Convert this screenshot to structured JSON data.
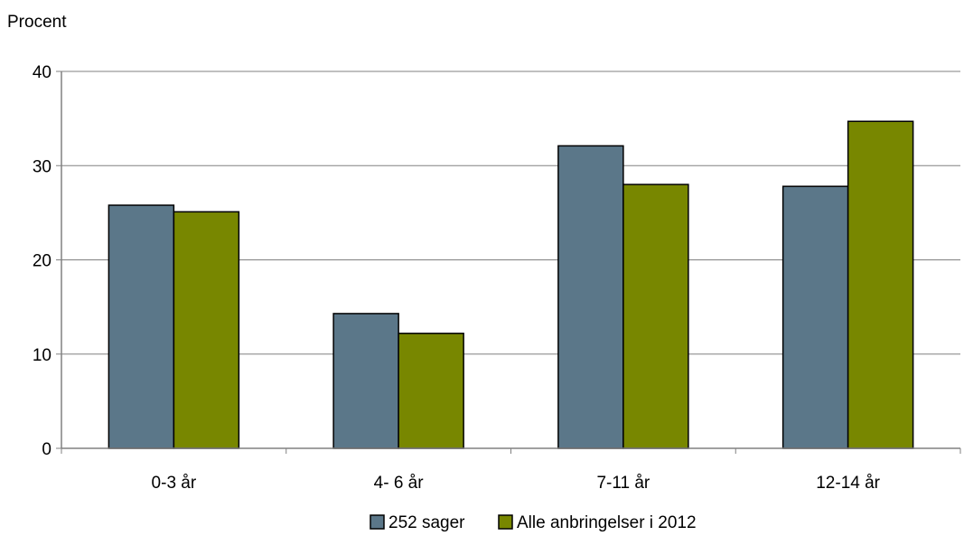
{
  "chart_data": {
    "type": "bar",
    "y_unit_label": "Procent",
    "categories": [
      "0-3 år",
      "4- 6 år",
      "7-11 år",
      "12-14 år"
    ],
    "series": [
      {
        "name": "252 sager",
        "color": "#5b7789",
        "values": [
          25.8,
          14.3,
          32.1,
          27.8
        ]
      },
      {
        "name": "Alle anbringelser i 2012",
        "color": "#788700",
        "values": [
          25.1,
          12.2,
          28.0,
          34.7
        ]
      }
    ],
    "ylim": [
      0,
      40
    ],
    "yticks": [
      0,
      10,
      20,
      30,
      40
    ],
    "grid": true,
    "legend_position": "bottom"
  }
}
